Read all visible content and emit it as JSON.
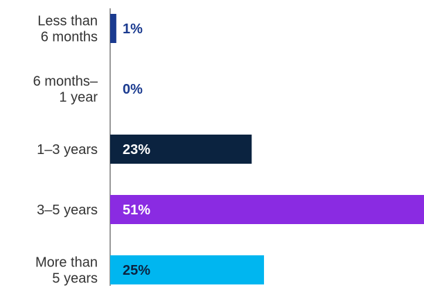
{
  "chart_data": {
    "type": "bar",
    "orientation": "horizontal",
    "categories": [
      "Less than\n6 months",
      "6 months–\n1 year",
      "1–3 years",
      "3–5 years",
      "More than\n5 years"
    ],
    "values": [
      1,
      0,
      23,
      51,
      25
    ],
    "value_labels": [
      "1%",
      "0%",
      "23%",
      "51%",
      "25%"
    ],
    "bar_colors": [
      "#1a3a8f",
      "#1a3a8f",
      "#0b2340",
      "#8a2be2",
      "#00b6f0"
    ],
    "value_label_colors": [
      "#1a3a8f",
      "#1a3a8f",
      "#ffffff",
      "#ffffff",
      "#0b2340"
    ],
    "xlim": [
      0,
      51
    ],
    "grid": false,
    "title": "",
    "xlabel": "",
    "ylabel": ""
  }
}
